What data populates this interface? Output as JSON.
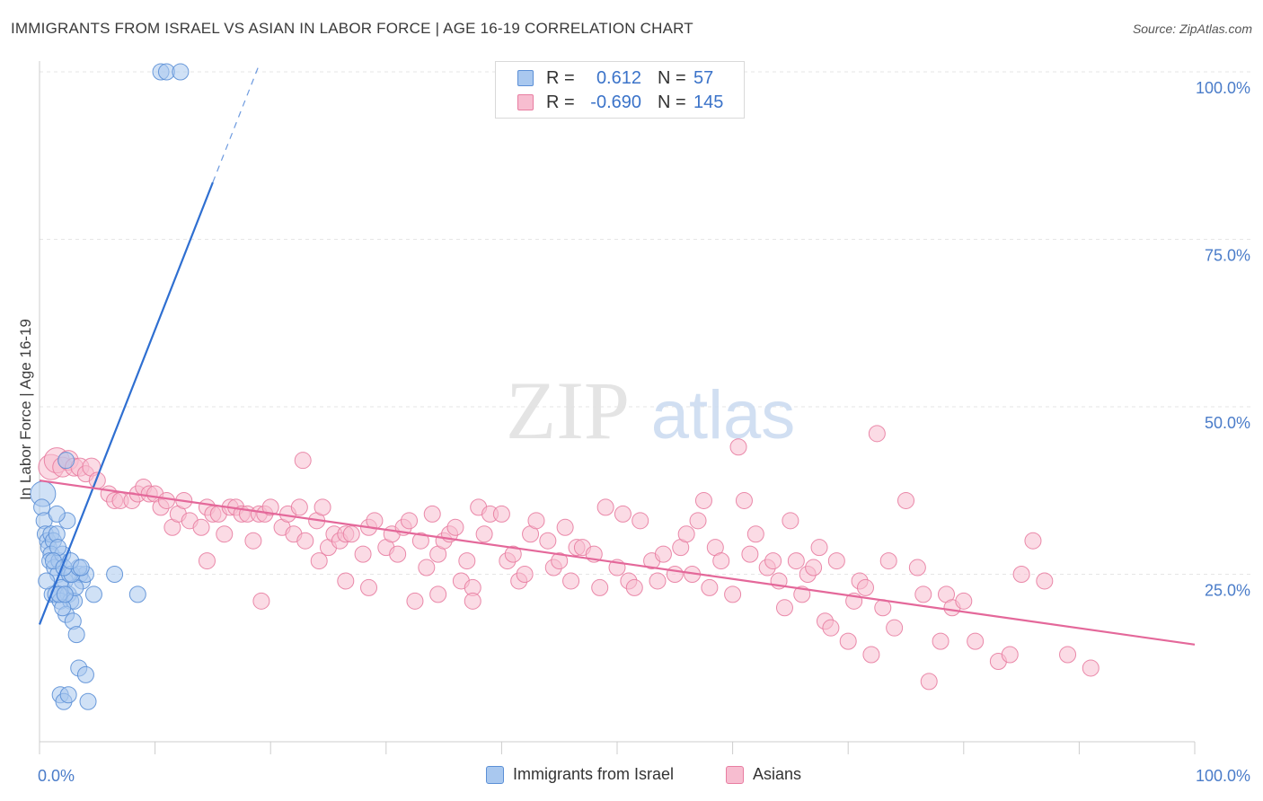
{
  "header": {
    "title": "IMMIGRANTS FROM ISRAEL VS ASIAN IN LABOR FORCE | AGE 16-19 CORRELATION CHART",
    "source": "Source: ZipAtlas.com"
  },
  "watermark": {
    "zip": "ZIP",
    "atlas": "atlas"
  },
  "legend": {
    "rows": [
      {
        "r_label": "R =",
        "r_value": "0.612",
        "n_label": "N =",
        "n_value": "57",
        "color": "#a9c8ef",
        "border": "#5b8fd6"
      },
      {
        "r_label": "R =",
        "r_value": "-0.690",
        "n_label": "N =",
        "n_value": "145",
        "color": "#f7bdd0",
        "border": "#e87da1"
      }
    ]
  },
  "bottom_legend": [
    "Immigrants from Israel",
    "Asians"
  ],
  "chart_data": {
    "type": "scatter",
    "title": "IMMIGRANTS FROM ISRAEL VS ASIAN IN LABOR FORCE | AGE 16-19 CORRELATION CHART",
    "xlabel": "",
    "ylabel": "In Labor Force | Age 16-19",
    "xlim": [
      0,
      100
    ],
    "ylim": [
      0,
      100
    ],
    "x_tick_labels": [
      "0.0%",
      "100.0%"
    ],
    "y_tick_labels": [
      "25.0%",
      "50.0%",
      "75.0%",
      "100.0%"
    ],
    "y_ticks": [
      25,
      50,
      75,
      100
    ],
    "grid": true,
    "legend_position": "top-center",
    "series": [
      {
        "name": "Immigrants from Israel",
        "color": "#a9c8ef",
        "edge": "#5b8fd6",
        "trend": {
          "x": [
            0,
            15
          ],
          "y": [
            17.5,
            83.5
          ],
          "dashed_x": [
            15,
            19
          ],
          "dashed_y": [
            83.5,
            101
          ],
          "color": "#2f6fd1"
        },
        "points": [
          [
            0.3,
            37,
            14
          ],
          [
            0.2,
            35,
            9
          ],
          [
            0.4,
            33,
            9
          ],
          [
            0.5,
            31,
            9
          ],
          [
            0.7,
            30,
            9
          ],
          [
            0.8,
            29,
            9
          ],
          [
            1.0,
            31,
            9
          ],
          [
            1.2,
            30,
            9
          ],
          [
            1.0,
            28,
            9
          ],
          [
            1.5,
            31,
            9
          ],
          [
            0.9,
            27,
            9
          ],
          [
            1.3,
            26,
            9
          ],
          [
            1.7,
            27,
            9
          ],
          [
            2.0,
            28,
            9
          ],
          [
            1.6,
            25,
            9
          ],
          [
            2.2,
            24,
            9
          ],
          [
            1.9,
            23,
            9
          ],
          [
            1.1,
            22,
            9
          ],
          [
            1.4,
            22,
            9
          ],
          [
            2.5,
            22,
            9
          ],
          [
            1.8,
            21,
            9
          ],
          [
            2.7,
            21,
            9
          ],
          [
            3.0,
            21,
            9
          ],
          [
            2.3,
            19,
            9
          ],
          [
            2.9,
            18,
            9
          ],
          [
            3.2,
            16,
            9
          ],
          [
            3.5,
            25,
            9
          ],
          [
            3.7,
            24,
            9
          ],
          [
            3.1,
            23,
            9
          ],
          [
            4.0,
            25,
            9
          ],
          [
            2.6,
            25,
            9
          ],
          [
            2.8,
            25,
            9
          ],
          [
            3.4,
            26,
            9
          ],
          [
            2.0,
            20,
            9
          ],
          [
            2.4,
            33,
            9
          ],
          [
            1.6,
            29,
            9
          ],
          [
            1.2,
            27,
            9
          ],
          [
            2.1,
            26,
            9
          ],
          [
            2.7,
            27,
            9
          ],
          [
            0.6,
            24,
            9
          ],
          [
            1.7,
            22,
            9
          ],
          [
            2.2,
            22,
            9
          ],
          [
            3.6,
            26,
            9
          ],
          [
            4.7,
            22,
            9
          ],
          [
            6.5,
            25,
            9
          ],
          [
            8.5,
            22,
            9
          ],
          [
            3.4,
            11,
            9
          ],
          [
            4.0,
            10,
            9
          ],
          [
            1.8,
            7,
            9
          ],
          [
            2.1,
            6,
            9
          ],
          [
            4.2,
            6,
            9
          ],
          [
            2.5,
            7,
            9
          ],
          [
            10.5,
            100,
            9
          ],
          [
            11,
            100,
            9
          ],
          [
            12.2,
            100,
            9
          ],
          [
            2.3,
            42,
            9
          ],
          [
            1.5,
            34,
            9
          ]
        ]
      },
      {
        "name": "Asians",
        "color": "#f7bdd0",
        "edge": "#e87da1",
        "trend": {
          "x": [
            0,
            100
          ],
          "y": [
            39,
            14.5
          ],
          "color": "#e4689a"
        },
        "points": [
          [
            1.0,
            41,
            14
          ],
          [
            1.5,
            42,
            14
          ],
          [
            2.0,
            41,
            11
          ],
          [
            2.5,
            42,
            11
          ],
          [
            3.0,
            41,
            10
          ],
          [
            3.5,
            41,
            10
          ],
          [
            4.0,
            40,
            9
          ],
          [
            4.5,
            41,
            10
          ],
          [
            5.0,
            39,
            9
          ],
          [
            6.0,
            37,
            9
          ],
          [
            6.5,
            36,
            9
          ],
          [
            7.0,
            36,
            9
          ],
          [
            8.0,
            36,
            9
          ],
          [
            8.5,
            37,
            9
          ],
          [
            9.0,
            38,
            9
          ],
          [
            9.5,
            37,
            9
          ],
          [
            10.0,
            37,
            9
          ],
          [
            10.5,
            35,
            9
          ],
          [
            11.0,
            36,
            9
          ],
          [
            11.5,
            32,
            9
          ],
          [
            12.0,
            34,
            9
          ],
          [
            12.5,
            36,
            9
          ],
          [
            13.0,
            33,
            9
          ],
          [
            14.0,
            32,
            9
          ],
          [
            14.5,
            35,
            9
          ],
          [
            15.0,
            34,
            9
          ],
          [
            15.5,
            34,
            9
          ],
          [
            16.0,
            31,
            9
          ],
          [
            16.5,
            35,
            9
          ],
          [
            17.0,
            35,
            9
          ],
          [
            17.5,
            34,
            9
          ],
          [
            18.0,
            34,
            9
          ],
          [
            18.5,
            30,
            9
          ],
          [
            19.0,
            34,
            9
          ],
          [
            19.5,
            34,
            9
          ],
          [
            20.0,
            35,
            9
          ],
          [
            21.0,
            32,
            9
          ],
          [
            21.5,
            34,
            9
          ],
          [
            22.0,
            31,
            9
          ],
          [
            22.5,
            35,
            9
          ],
          [
            23.0,
            30,
            9
          ],
          [
            24.0,
            33,
            9
          ],
          [
            24.5,
            35,
            9
          ],
          [
            25.0,
            29,
            9
          ],
          [
            25.5,
            31,
            9
          ],
          [
            26.0,
            30,
            9
          ],
          [
            26.5,
            31,
            9
          ],
          [
            27.0,
            31,
            9
          ],
          [
            28.0,
            28,
            9
          ],
          [
            28.5,
            32,
            9
          ],
          [
            29.0,
            33,
            9
          ],
          [
            30.0,
            29,
            9
          ],
          [
            30.5,
            31,
            9
          ],
          [
            31.0,
            28,
            9
          ],
          [
            31.5,
            32,
            9
          ],
          [
            32.0,
            33,
            9
          ],
          [
            33.0,
            30,
            9
          ],
          [
            33.5,
            26,
            9
          ],
          [
            34.0,
            34,
            9
          ],
          [
            34.5,
            28,
            9
          ],
          [
            35.0,
            30,
            9
          ],
          [
            35.5,
            31,
            9
          ],
          [
            36.0,
            32,
            9
          ],
          [
            36.5,
            24,
            9
          ],
          [
            37.0,
            27,
            9
          ],
          [
            37.5,
            23,
            9
          ],
          [
            38.0,
            35,
            9
          ],
          [
            38.5,
            31,
            9
          ],
          [
            39.0,
            34,
            9
          ],
          [
            40.0,
            34,
            9
          ],
          [
            40.5,
            27,
            9
          ],
          [
            41.0,
            28,
            9
          ],
          [
            41.5,
            24,
            9
          ],
          [
            42.0,
            25,
            9
          ],
          [
            42.5,
            31,
            9
          ],
          [
            43.0,
            33,
            9
          ],
          [
            44.0,
            30,
            9
          ],
          [
            44.5,
            26,
            9
          ],
          [
            45.0,
            27,
            9
          ],
          [
            45.5,
            32,
            9
          ],
          [
            46.0,
            24,
            9
          ],
          [
            46.5,
            29,
            9
          ],
          [
            47.0,
            29,
            9
          ],
          [
            48.0,
            28,
            9
          ],
          [
            48.5,
            23,
            9
          ],
          [
            49.0,
            35,
            9
          ],
          [
            50.0,
            26,
            9
          ],
          [
            50.5,
            34,
            9
          ],
          [
            51.0,
            24,
            9
          ],
          [
            51.5,
            23,
            9
          ],
          [
            52.0,
            33,
            9
          ],
          [
            53.0,
            27,
            9
          ],
          [
            53.5,
            24,
            9
          ],
          [
            54.0,
            28,
            9
          ],
          [
            55.0,
            25,
            9
          ],
          [
            55.5,
            29,
            9
          ],
          [
            56.0,
            31,
            9
          ],
          [
            56.5,
            25,
            9
          ],
          [
            57.0,
            33,
            9
          ],
          [
            57.5,
            36,
            9
          ],
          [
            58.0,
            23,
            9
          ],
          [
            58.5,
            29,
            9
          ],
          [
            59.0,
            27,
            9
          ],
          [
            60.0,
            22,
            9
          ],
          [
            60.5,
            44,
            9
          ],
          [
            61.0,
            36,
            9
          ],
          [
            61.5,
            28,
            9
          ],
          [
            62.0,
            31,
            9
          ],
          [
            63.0,
            26,
            9
          ],
          [
            63.5,
            27,
            9
          ],
          [
            64.0,
            24,
            9
          ],
          [
            64.5,
            20,
            9
          ],
          [
            65.0,
            33,
            9
          ],
          [
            65.5,
            27,
            9
          ],
          [
            66.0,
            22,
            9
          ],
          [
            66.5,
            25,
            9
          ],
          [
            67.0,
            26,
            9
          ],
          [
            67.5,
            29,
            9
          ],
          [
            68.0,
            18,
            9
          ],
          [
            68.5,
            17,
            9
          ],
          [
            69.0,
            27,
            9
          ],
          [
            70.0,
            15,
            9
          ],
          [
            70.5,
            21,
            9
          ],
          [
            71.0,
            24,
            9
          ],
          [
            71.5,
            23,
            9
          ],
          [
            72.0,
            13,
            9
          ],
          [
            72.5,
            46,
            9
          ],
          [
            73.0,
            20,
            9
          ],
          [
            73.5,
            27,
            9
          ],
          [
            74.0,
            17,
            9
          ],
          [
            75.0,
            36,
            9
          ],
          [
            76.0,
            26,
            9
          ],
          [
            76.5,
            22,
            9
          ],
          [
            77.0,
            9,
            9
          ],
          [
            78.0,
            15,
            9
          ],
          [
            78.5,
            22,
            9
          ],
          [
            79.0,
            20,
            9
          ],
          [
            80.0,
            21,
            9
          ],
          [
            81.0,
            15,
            9
          ],
          [
            83.0,
            12,
            9
          ],
          [
            84.0,
            13,
            9
          ],
          [
            85.0,
            25,
            9
          ],
          [
            86.0,
            30,
            9
          ],
          [
            87.0,
            24,
            9
          ],
          [
            89.0,
            13,
            9
          ],
          [
            91.0,
            11,
            9
          ],
          [
            14.5,
            27,
            9
          ],
          [
            19.2,
            21,
            9
          ],
          [
            22.8,
            42,
            9
          ],
          [
            24.2,
            27,
            9
          ],
          [
            26.5,
            24,
            9
          ],
          [
            28.5,
            23,
            9
          ],
          [
            32.5,
            21,
            9
          ],
          [
            34.5,
            22,
            9
          ],
          [
            37.5,
            21,
            9
          ]
        ]
      }
    ]
  }
}
